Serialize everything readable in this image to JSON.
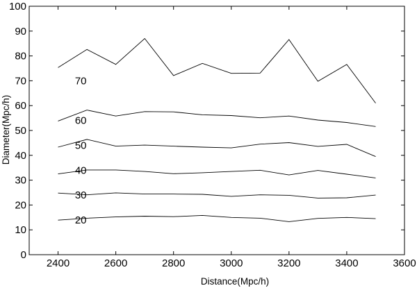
{
  "chart_data": {
    "type": "line",
    "title": "",
    "xlabel": "Distance(Mpc/h)",
    "ylabel": "Diameter(Mpc/h)",
    "xlim": [
      2300,
      3600
    ],
    "ylim": [
      0,
      100
    ],
    "xticks": [
      2400,
      2600,
      2800,
      3000,
      3200,
      3400,
      3600
    ],
    "yticks": [
      0,
      10,
      20,
      30,
      40,
      50,
      60,
      70,
      80,
      90,
      100
    ],
    "grid": false,
    "legend": "none",
    "line_color": "#000000",
    "x": [
      2400,
      2500,
      2600,
      2700,
      2800,
      2900,
      3000,
      3100,
      3200,
      3300,
      3400,
      3500
    ],
    "series": [
      {
        "label": "20",
        "label_at": [
          2420,
          14
        ],
        "values": [
          13.9,
          14.7,
          15.2,
          15.5,
          15.3,
          15.8,
          15.0,
          14.7,
          13.3,
          14.6,
          15.0,
          14.5
        ]
      },
      {
        "label": "30",
        "label_at": [
          2420,
          24
        ],
        "values": [
          24.8,
          24.1,
          24.9,
          24.4,
          24.4,
          24.3,
          23.5,
          24.1,
          23.9,
          22.8,
          22.9,
          24.0
        ]
      },
      {
        "label": "40",
        "label_at": [
          2420,
          34
        ],
        "values": [
          32.5,
          34.1,
          34.1,
          33.5,
          32.6,
          33.0,
          33.5,
          34.0,
          32.1,
          33.9,
          32.4,
          30.9
        ]
      },
      {
        "label": "50",
        "label_at": [
          2420,
          44
        ],
        "values": [
          43.3,
          46.4,
          43.7,
          44.1,
          43.7,
          43.3,
          43.0,
          44.5,
          45.1,
          43.6,
          44.4,
          39.5
        ]
      },
      {
        "label": "60",
        "label_at": [
          2420,
          54
        ],
        "values": [
          53.8,
          58.2,
          55.8,
          57.6,
          57.5,
          56.3,
          56.0,
          55.1,
          55.8,
          54.2,
          53.2,
          51.6
        ]
      },
      {
        "label": "70",
        "label_at": [
          2420,
          70
        ],
        "values": [
          75.3,
          82.6,
          76.6,
          87.0,
          72.1,
          77.0,
          73.0,
          73.1,
          86.6,
          69.8,
          76.6,
          61.0
        ]
      }
    ]
  }
}
